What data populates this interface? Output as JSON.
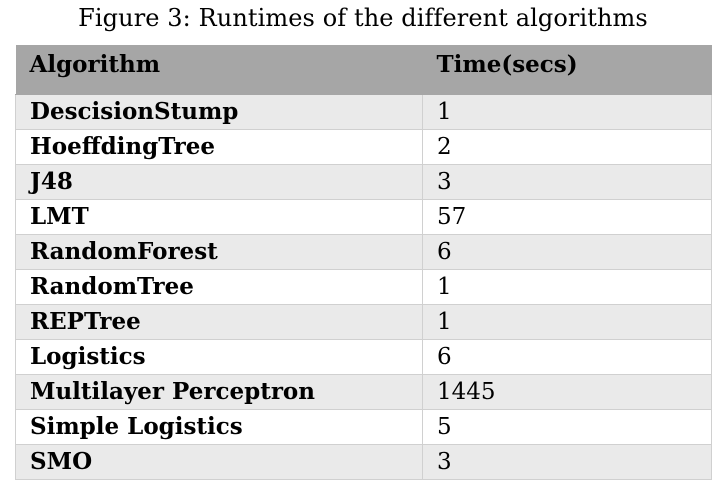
{
  "caption": "Figure 3: Runtimes of the different algorithms",
  "table": {
    "headers": {
      "algorithm": "Algorithm",
      "time": "Time(secs)"
    },
    "rows": [
      {
        "algorithm": "DescisionStump",
        "time": "1"
      },
      {
        "algorithm": "HoeffdingTree",
        "time": "2"
      },
      {
        "algorithm": "J48",
        "time": "3"
      },
      {
        "algorithm": "LMT",
        "time": "57"
      },
      {
        "algorithm": "RandomForest",
        "time": "6"
      },
      {
        "algorithm": "RandomTree",
        "time": "1"
      },
      {
        "algorithm": "REPTree",
        "time": "1"
      },
      {
        "algorithm": "Logistics",
        "time": "6"
      },
      {
        "algorithm": "Multilayer Perceptron",
        "time": "1445"
      },
      {
        "algorithm": "Simple Logistics",
        "time": "5"
      },
      {
        "algorithm": "SMO",
        "time": "3"
      }
    ]
  }
}
